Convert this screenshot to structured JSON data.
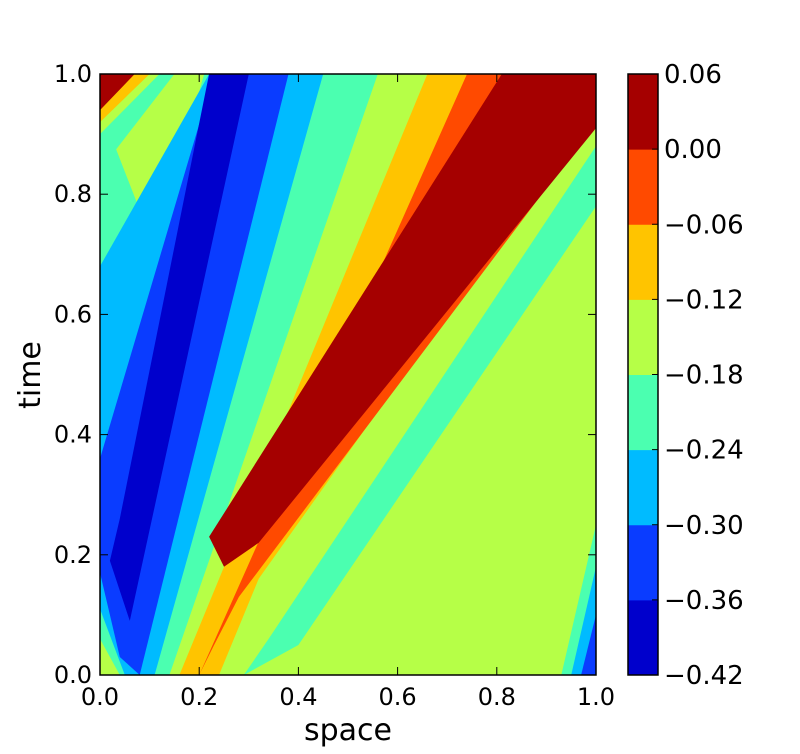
{
  "chart_data": {
    "type": "heatmap",
    "subtype": "filled-contour",
    "title": "",
    "xlabel": "space",
    "ylabel": "time",
    "xlim": [
      0.0,
      1.0
    ],
    "ylim": [
      0.0,
      1.0
    ],
    "x_ticks": [
      "0.0",
      "0.2",
      "0.4",
      "0.6",
      "0.8",
      "1.0"
    ],
    "y_ticks": [
      "0.0",
      "0.2",
      "0.4",
      "0.6",
      "0.8",
      "1.0"
    ],
    "colorbar": {
      "levels": [
        -0.42,
        -0.36,
        -0.3,
        -0.24,
        -0.18,
        -0.12,
        -0.06,
        0.0,
        0.06
      ],
      "tick_labels": [
        "−0.42",
        "−0.36",
        "−0.30",
        "−0.24",
        "−0.18",
        "−0.12",
        "−0.06",
        "0.00",
        "0.06"
      ],
      "colors": [
        "#0000cc",
        "#0a3cff",
        "#00bbff",
        "#4bffb0",
        "#b6ff47",
        "#ffc400",
        "#ff4a00",
        "#a50000"
      ]
    },
    "description_of_field": "diagonal bands of constant value propagating in +space direction over time"
  }
}
